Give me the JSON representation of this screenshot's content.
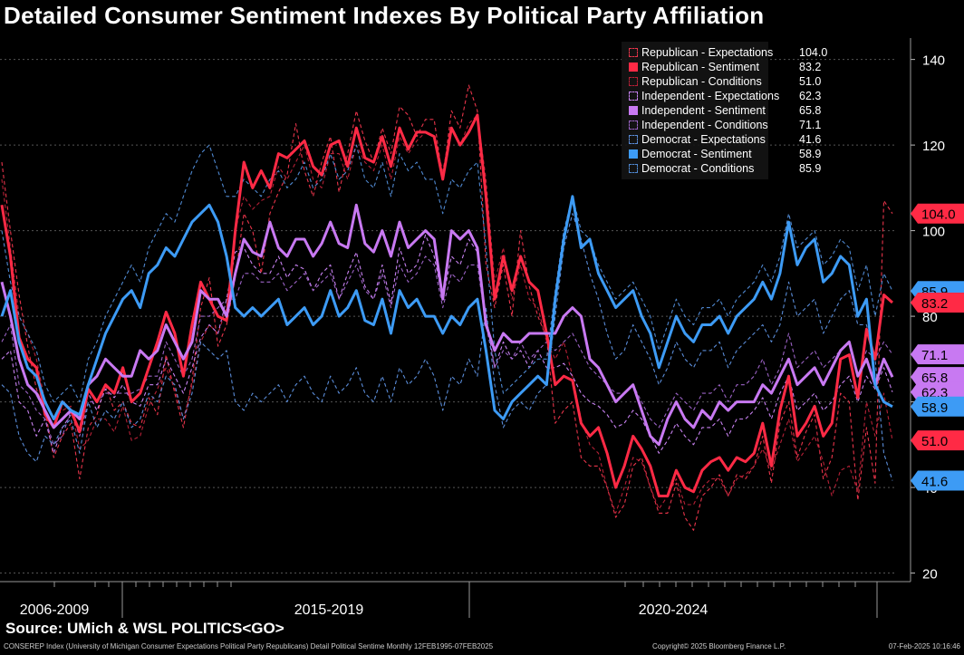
{
  "title": "Detailed Consumer Sentiment Indexes By Political Party Affiliation",
  "source": "Source: UMich & WSL POLITICS<GO>",
  "footer": {
    "left": "CONSEREP Index (University of Michigan Consumer Expectations Political Party Republicans) Detail Political Sentime  Monthly 12FEB1995-07FEB2025",
    "center": "Copyright© 2025 Bloomberg Finance L.P.",
    "right": "07-Feb-2025 10:16:46"
  },
  "chart_data": {
    "type": "line",
    "title": "Detailed Consumer Sentiment Indexes By Political Party Affiliation",
    "ylim": [
      18,
      145
    ],
    "yticks": [
      20,
      40,
      60,
      80,
      100,
      120,
      140
    ],
    "x_period_labels": [
      "2006-2009",
      "2015-2019",
      "2020-2024"
    ],
    "grid": true,
    "legend_position": "top-right",
    "series": [
      {
        "name": "Republican - Expectations",
        "party": "rep",
        "style": "dashed",
        "color": "#e8344a",
        "last": 104.0,
        "values": [
          116,
          100,
          85,
          73,
          63,
          58,
          47,
          52,
          55,
          42,
          54,
          57,
          64,
          58,
          60,
          55,
          54,
          61,
          57,
          71,
          62,
          54,
          65,
          82,
          89,
          73,
          78,
          89,
          104,
          100,
          90,
          104,
          109,
          113,
          125,
          114,
          108,
          116,
          122,
          109,
          118,
          128,
          121,
          116,
          124,
          118,
          129,
          127,
          122,
          126,
          126,
          112,
          128,
          124,
          134,
          128,
          92,
          82,
          92,
          80,
          100,
          87,
          80,
          75,
          55,
          58,
          60,
          47,
          45,
          45,
          40,
          33,
          36,
          45,
          47,
          40,
          34,
          34,
          41,
          33,
          30,
          38,
          40,
          43,
          38,
          43,
          42,
          45,
          52,
          41,
          55,
          60,
          47,
          53,
          57,
          42,
          47,
          62,
          60,
          37,
          54,
          41,
          107,
          104
        ]
      },
      {
        "name": "Republican - Sentiment",
        "party": "rep",
        "style": "solid",
        "color": "#ff2a45",
        "last": 83.2,
        "values": [
          106,
          94,
          75,
          70,
          68,
          57,
          54,
          60,
          58,
          53,
          63,
          60,
          64,
          62,
          68,
          60,
          62,
          68,
          74,
          81,
          76,
          66,
          78,
          88,
          84,
          80,
          79,
          100,
          116,
          110,
          114,
          110,
          118,
          117,
          119,
          121,
          115,
          113,
          120,
          121,
          115,
          124,
          117,
          116,
          122,
          115,
          124,
          119,
          123,
          123,
          122,
          112,
          124,
          120,
          123,
          127,
          108,
          84,
          94,
          86,
          94,
          88,
          86,
          76,
          64,
          66,
          65,
          55,
          52,
          54,
          48,
          40,
          45,
          52,
          49,
          45,
          38,
          38,
          44,
          40,
          39,
          44,
          46,
          47,
          44,
          47,
          46,
          48,
          55,
          45,
          58,
          66,
          52,
          55,
          59,
          52,
          55,
          70,
          71,
          61,
          77,
          70,
          85,
          83.2
        ]
      },
      {
        "name": "Republican - Conditions",
        "party": "rep",
        "style": "dashed",
        "color": "#b52036",
        "last": 51.0,
        "values": [
          112,
          96,
          80,
          76,
          70,
          60,
          56,
          58,
          59,
          49,
          51,
          56,
          56,
          53,
          59,
          51,
          52,
          59,
          63,
          68,
          63,
          56,
          64,
          74,
          78,
          76,
          82,
          100,
          108,
          105,
          107,
          108,
          115,
          112,
          116,
          120,
          112,
          110,
          118,
          118,
          112,
          120,
          116,
          114,
          120,
          112,
          122,
          118,
          121,
          123,
          122,
          114,
          124,
          120,
          125,
          127,
          112,
          88,
          96,
          84,
          92,
          84,
          82,
          74,
          70,
          74,
          66,
          56,
          50,
          48,
          40,
          34,
          40,
          47,
          46,
          40,
          35,
          38,
          42,
          36,
          36,
          40,
          42,
          42,
          38,
          42,
          43,
          45,
          49,
          44,
          50,
          56,
          46,
          49,
          52,
          46,
          38,
          44,
          45,
          39,
          60,
          52,
          62,
          51
        ]
      },
      {
        "name": "Independent - Expectations",
        "party": "ind",
        "style": "dashed",
        "color": "#c781f0",
        "last": 62.3,
        "values": [
          70,
          72,
          60,
          58,
          52,
          56,
          48,
          54,
          57,
          54,
          62,
          58,
          63,
          61,
          64,
          60,
          59,
          64,
          64,
          70,
          66,
          62,
          68,
          75,
          78,
          76,
          84,
          95,
          96,
          92,
          90,
          90,
          94,
          89,
          92,
          91,
          86,
          90,
          92,
          84,
          90,
          95,
          87,
          84,
          92,
          83,
          96,
          90,
          92,
          99,
          94,
          84,
          94,
          92,
          98,
          95,
          80,
          68,
          74,
          70,
          72,
          68,
          72,
          68,
          68,
          69,
          66,
          62,
          60,
          59,
          57,
          54,
          55,
          58,
          56,
          52,
          48,
          51,
          55,
          52,
          50,
          54,
          54,
          56,
          52,
          56,
          56,
          58,
          61,
          56,
          62,
          66,
          58,
          60,
          62,
          58,
          60,
          64,
          66,
          60,
          66,
          63,
          68,
          62.3
        ]
      },
      {
        "name": "Independent - Sentiment",
        "party": "ind",
        "style": "solid",
        "color": "#c879f2",
        "last": 65.8,
        "values": [
          88,
          80,
          70,
          64,
          62,
          58,
          54,
          56,
          58,
          56,
          64,
          66,
          70,
          68,
          66,
          66,
          72,
          70,
          72,
          78,
          74,
          70,
          74,
          86,
          84,
          84,
          80,
          90,
          98,
          95,
          94,
          102,
          96,
          94,
          98,
          98,
          94,
          97,
          102,
          97,
          96,
          106,
          97,
          95,
          100,
          94,
          102,
          96,
          98,
          100,
          98,
          84,
          100,
          98,
          100,
          96,
          78,
          72,
          76,
          74,
          74,
          76,
          76,
          76,
          76,
          80,
          82,
          80,
          70,
          68,
          64,
          60,
          62,
          64,
          58,
          52,
          50,
          56,
          60,
          56,
          54,
          58,
          56,
          60,
          58,
          60,
          60,
          60,
          64,
          62,
          66,
          70,
          64,
          66,
          68,
          64,
          68,
          72,
          74,
          66,
          70,
          64,
          70,
          65.8
        ]
      },
      {
        "name": "Independent - Conditions",
        "party": "ind",
        "style": "dashed",
        "color": "#9a62c4",
        "last": 71.1,
        "values": [
          74,
          78,
          64,
          62,
          58,
          56,
          50,
          52,
          58,
          52,
          60,
          60,
          62,
          62,
          62,
          62,
          63,
          66,
          66,
          74,
          70,
          66,
          70,
          80,
          80,
          82,
          84,
          84,
          90,
          90,
          88,
          88,
          90,
          86,
          88,
          90,
          86,
          88,
          90,
          84,
          88,
          92,
          86,
          84,
          90,
          82,
          92,
          88,
          90,
          94,
          92,
          82,
          90,
          88,
          92,
          92,
          78,
          68,
          72,
          70,
          74,
          70,
          72,
          74,
          72,
          74,
          76,
          72,
          68,
          66,
          64,
          62,
          62,
          64,
          60,
          56,
          54,
          58,
          62,
          60,
          58,
          62,
          62,
          64,
          60,
          64,
          64,
          66,
          70,
          64,
          68,
          76,
          68,
          70,
          72,
          68,
          70,
          72,
          74,
          66,
          72,
          70,
          74,
          71.1
        ]
      },
      {
        "name": "Democrat - Expectations",
        "party": "dem",
        "style": "dashed",
        "color": "#5a8cd8",
        "last": 41.6,
        "values": [
          64,
          62,
          52,
          48,
          46,
          52,
          50,
          54,
          56,
          48,
          60,
          54,
          58,
          56,
          60,
          54,
          56,
          62,
          60,
          66,
          64,
          56,
          62,
          74,
          72,
          70,
          72,
          60,
          58,
          62,
          60,
          62,
          64,
          60,
          64,
          66,
          62,
          60,
          66,
          62,
          64,
          68,
          62,
          60,
          66,
          60,
          68,
          64,
          66,
          70,
          66,
          58,
          66,
          64,
          70,
          66,
          82,
          64,
          54,
          58,
          60,
          58,
          62,
          64,
          80,
          96,
          104,
          98,
          90,
          84,
          76,
          70,
          72,
          78,
          74,
          70,
          64,
          68,
          74,
          70,
          68,
          72,
          72,
          74,
          68,
          72,
          74,
          76,
          78,
          74,
          78,
          88,
          80,
          82,
          84,
          76,
          80,
          84,
          86,
          78,
          78,
          70,
          48,
          41.6
        ]
      },
      {
        "name": "Democrat - Sentiment",
        "party": "dem",
        "style": "solid",
        "color": "#3d9bf5",
        "last": 58.9,
        "values": [
          80,
          86,
          74,
          68,
          66,
          60,
          56,
          60,
          58,
          57,
          64,
          70,
          76,
          80,
          84,
          86,
          82,
          90,
          92,
          96,
          94,
          98,
          102,
          104,
          106,
          102,
          94,
          82,
          80,
          82,
          80,
          82,
          84,
          78,
          80,
          82,
          78,
          80,
          86,
          80,
          82,
          86,
          79,
          78,
          84,
          76,
          86,
          82,
          84,
          80,
          80,
          76,
          80,
          78,
          82,
          84,
          72,
          58,
          56,
          60,
          62,
          64,
          66,
          64,
          84,
          98,
          108,
          96,
          98,
          90,
          86,
          82,
          84,
          86,
          80,
          76,
          68,
          74,
          80,
          76,
          74,
          78,
          78,
          80,
          76,
          80,
          82,
          84,
          88,
          84,
          90,
          102,
          92,
          96,
          98,
          88,
          90,
          94,
          92,
          80,
          84,
          64,
          60,
          58.9
        ]
      },
      {
        "name": "Democrat - Conditions",
        "party": "dem",
        "style": "dashed",
        "color": "#4f88d0",
        "last": 85.9,
        "values": [
          100,
          88,
          80,
          76,
          72,
          64,
          60,
          62,
          64,
          60,
          70,
          74,
          80,
          84,
          88,
          92,
          88,
          96,
          100,
          104,
          102,
          108,
          114,
          118,
          120,
          114,
          108,
          108,
          112,
          110,
          108,
          112,
          114,
          110,
          112,
          116,
          110,
          112,
          118,
          112,
          114,
          120,
          112,
          110,
          116,
          108,
          118,
          114,
          116,
          112,
          112,
          104,
          112,
          110,
          114,
          116,
          96,
          72,
          62,
          64,
          66,
          68,
          70,
          70,
          86,
          100,
          108,
          100,
          98,
          92,
          88,
          84,
          86,
          88,
          84,
          80,
          72,
          78,
          84,
          80,
          78,
          82,
          82,
          84,
          80,
          84,
          86,
          88,
          92,
          88,
          94,
          104,
          96,
          98,
          100,
          92,
          94,
          98,
          96,
          86,
          92,
          80,
          90,
          85.9
        ]
      }
    ]
  },
  "tags": [
    {
      "label": "104.0",
      "party": "rep",
      "style": "solid"
    },
    {
      "label": "85.9",
      "party": "dem",
      "style": "solid"
    },
    {
      "label": "83.2",
      "party": "rep",
      "style": "solid"
    },
    {
      "label": "71.1",
      "party": "ind",
      "style": "solid"
    },
    {
      "label": "65.8",
      "party": "ind",
      "style": "solid"
    },
    {
      "label": "62.3",
      "party": "ind",
      "style": "solid"
    },
    {
      "label": "58.9",
      "party": "dem",
      "style": "solid"
    },
    {
      "label": "51.0",
      "party": "rep",
      "style": "solid"
    },
    {
      "label": "41.6",
      "party": "dem",
      "style": "solid"
    }
  ]
}
